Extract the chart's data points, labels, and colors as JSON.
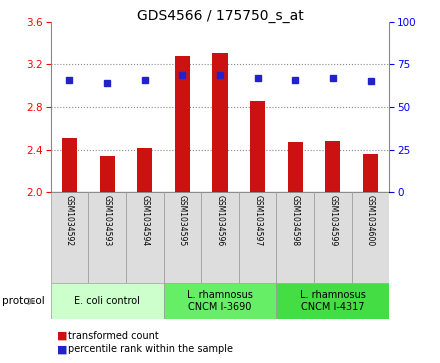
{
  "title": "GDS4566 / 175750_s_at",
  "samples": [
    "GSM1034592",
    "GSM1034593",
    "GSM1034594",
    "GSM1034595",
    "GSM1034596",
    "GSM1034597",
    "GSM1034598",
    "GSM1034599",
    "GSM1034600"
  ],
  "transformed_counts": [
    2.51,
    2.34,
    2.42,
    3.28,
    3.31,
    2.86,
    2.47,
    2.48,
    2.36
  ],
  "percentile_ranks": [
    66,
    64,
    66,
    69,
    69,
    67,
    66,
    67,
    65
  ],
  "ylim_left": [
    2.0,
    3.6
  ],
  "ylim_right": [
    0,
    100
  ],
  "yticks_left": [
    2.0,
    2.4,
    2.8,
    3.2,
    3.6
  ],
  "yticks_right": [
    0,
    25,
    50,
    75,
    100
  ],
  "bar_color": "#cc1111",
  "dot_color": "#2222cc",
  "protocol_groups": [
    {
      "label": "E. coli control",
      "start": 0,
      "end": 3,
      "color": "#ccffcc"
    },
    {
      "label": "L. rhamnosus\nCNCM I-3690",
      "start": 3,
      "end": 6,
      "color": "#66ee66"
    },
    {
      "label": "L. rhamnosus\nCNCM I-4317",
      "start": 6,
      "end": 9,
      "color": "#44dd44"
    }
  ],
  "protocol_label": "protocol",
  "legend_bar_label": "transformed count",
  "legend_dot_label": "percentile rank within the sample",
  "title_fontsize": 10,
  "tick_fontsize": 7.5,
  "bar_width": 0.4
}
